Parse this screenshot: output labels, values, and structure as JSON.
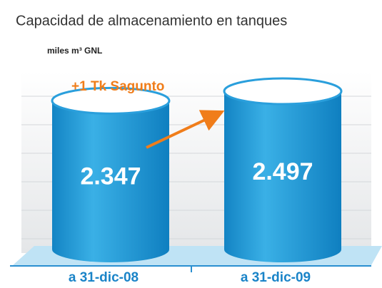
{
  "chart_data": {
    "type": "cylinder",
    "title": "Capacidad de almacenamiento en tanques",
    "y_label": "miles m³ GNL",
    "categories": [
      "a 31-dic-08",
      "a 31-dic-09"
    ],
    "values": [
      2347,
      2497
    ],
    "value_labels": [
      "2.347",
      "2.497"
    ],
    "annotation": "+1 Tk Sagunto",
    "color": "#1c96d4"
  }
}
